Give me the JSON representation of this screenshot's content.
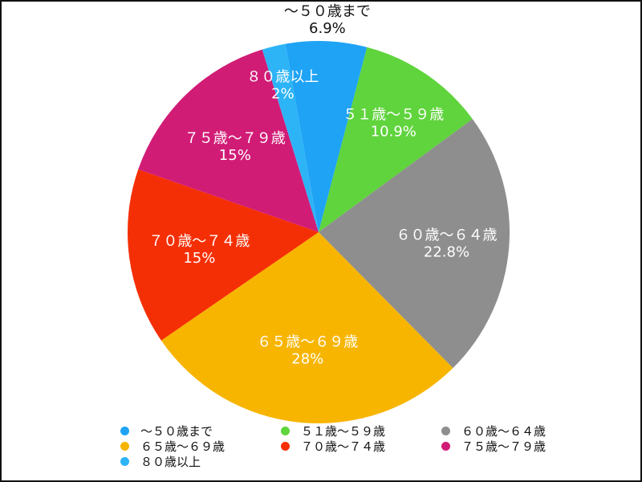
{
  "chart_data": {
    "type": "pie",
    "title": "",
    "start_angle_deg": 350,
    "direction": "clockwise",
    "slices": [
      {
        "label": "～５０歳まで",
        "value": 6.9,
        "value_label": "6.9%",
        "color": "#1FA3F5",
        "label_color": "#111111"
      },
      {
        "label": "５１歳～５９歳",
        "value": 10.9,
        "value_label": "10.9%",
        "color": "#5FD43C",
        "label_color": "#ffffff"
      },
      {
        "label": "６０歳～６４歳",
        "value": 22.8,
        "value_label": "22.8%",
        "color": "#8E8E8E",
        "label_color": "#ffffff"
      },
      {
        "label": "６５歳～６９歳",
        "value": 28,
        "value_label": "28%",
        "color": "#F7B500",
        "label_color": "#ffffff"
      },
      {
        "label": "７０歳～７４歳",
        "value": 15,
        "value_label": "15%",
        "color": "#F52F05",
        "label_color": "#ffffff"
      },
      {
        "label": "７５歳～７９歳",
        "value": 15,
        "value_label": "15%",
        "color": "#D11C76",
        "label_color": "#ffffff"
      },
      {
        "label": "８０歳以上",
        "value": 2,
        "value_label": "2%",
        "color": "#2DB4F7",
        "label_color": "#ffffff"
      }
    ],
    "legend": {
      "placement": "bottom",
      "items": [
        {
          "label": "～５０歳まで",
          "color": "#1FA3F5"
        },
        {
          "label": "５１歳～５９歳",
          "color": "#5FD43C"
        },
        {
          "label": "６０歳～６４歳",
          "color": "#8E8E8E"
        },
        {
          "label": "６５歳～６９歳",
          "color": "#F7B500"
        },
        {
          "label": "７０歳～７４歳",
          "color": "#F52F05"
        },
        {
          "label": "７５歳～７９歳",
          "color": "#D11C76"
        },
        {
          "label": "８０歳以上",
          "color": "#2DB4F7"
        }
      ]
    }
  }
}
